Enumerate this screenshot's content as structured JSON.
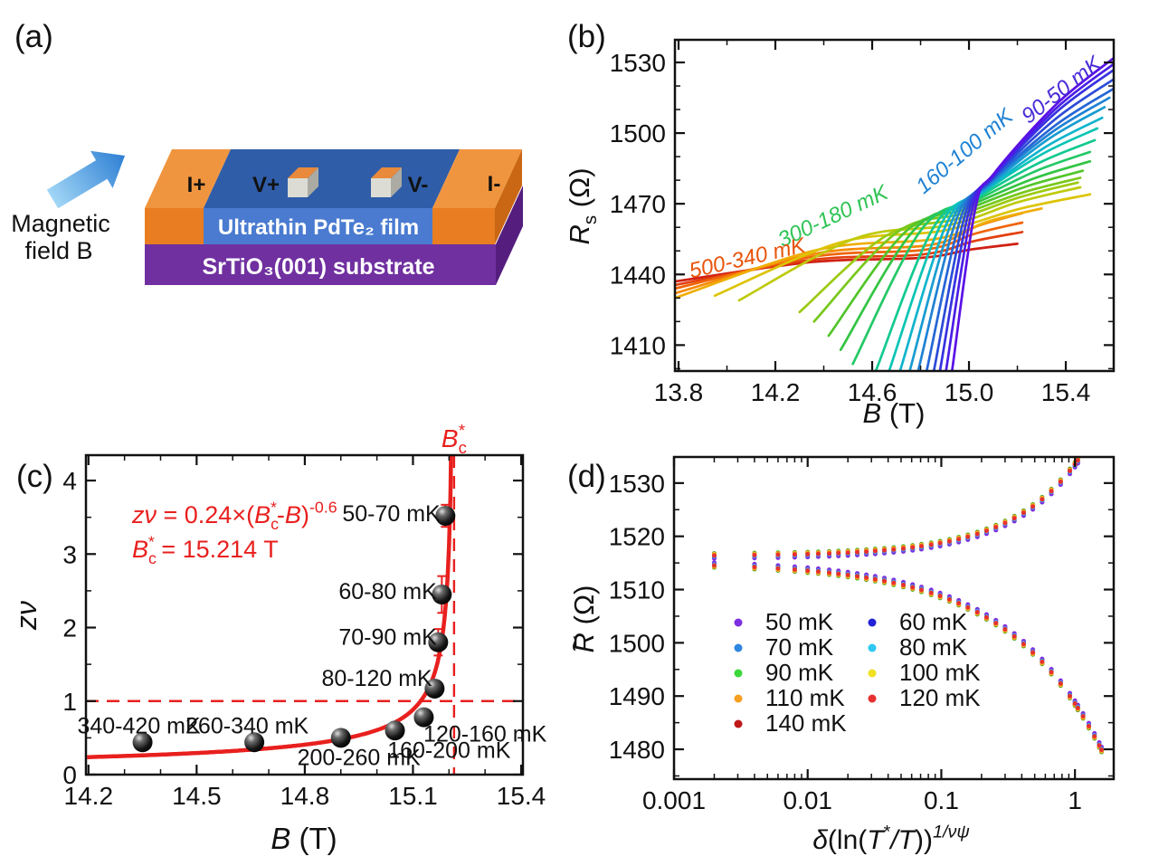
{
  "panels": {
    "a": {
      "label": "(a)",
      "magnetic_line1": "Magnetic",
      "magnetic_line2": "field B",
      "i_plus": "I+",
      "v_plus": "V+",
      "v_minus": "V-",
      "i_minus": "I-",
      "film": "Ultrathin PdTe₂ film",
      "substrate": "SrTiO₃(001) substrate",
      "colors": {
        "orange_top": "#F0953F",
        "orange_front": "#E87D22",
        "orange_side": "#C96715",
        "film_top": "#2F5DA8",
        "film_front": "#4A7BD0",
        "substrate_front": "#7030A0",
        "substrate_side": "#551E7E",
        "pad_front": "#DCDCD4",
        "pad_side": "#ABABA3",
        "pad_top": "#E8893C",
        "arrow_light": "#A9DCF8",
        "arrow_dark": "#2E7FD4"
      }
    },
    "b": {
      "label": "(b)"
    },
    "c": {
      "label": "(c)"
    },
    "d": {
      "label": "(d)"
    }
  },
  "chart_data": [
    {
      "panel": "b",
      "type": "line",
      "xlabel_rich": [
        {
          "t": "B",
          "i": 1
        },
        {
          "t": " (T)"
        }
      ],
      "ylabel_rich": [
        {
          "t": "R",
          "i": 1
        },
        {
          "t": "s",
          "sub": 1
        },
        {
          "t": " (Ω)"
        }
      ],
      "xlim": [
        13.785,
        15.598
      ],
      "ylim": [
        1399,
        1539.6
      ],
      "xticks": [
        13.8,
        14.2,
        14.6,
        15.0,
        15.4
      ],
      "xminor_step": 0.2,
      "yticks": [
        1410,
        1440,
        1470,
        1500,
        1530
      ],
      "yminor_step": 10,
      "series": [
        {
          "label": "500 mK",
          "color": "#D02014",
          "pts": [
            [
              13.785,
              1437
            ],
            [
              14.8,
              1447
            ],
            [
              15.2,
              1453
            ]
          ]
        },
        {
          "label": "460 mK",
          "color": "#E2400E",
          "pts": [
            [
              13.785,
              1435.5
            ],
            [
              14.81,
              1448.5
            ],
            [
              15.22,
              1458
            ]
          ]
        },
        {
          "label": "420 mK",
          "color": "#F0650A",
          "pts": [
            [
              13.785,
              1434
            ],
            [
              14.82,
              1450.5
            ],
            [
              15.22,
              1462
            ]
          ]
        },
        {
          "label": "380 mK",
          "color": "#F58A06",
          "pts": [
            [
              13.785,
              1432
            ],
            [
              14.84,
              1452.5
            ],
            [
              15.22,
              1466
            ]
          ]
        },
        {
          "label": "340 mK",
          "color": "#EFAD04",
          "pts": [
            [
              13.785,
              1430
            ],
            [
              14.86,
              1455
            ],
            [
              15.3,
              1468
            ]
          ]
        },
        {
          "label": "300 mK",
          "color": "#DCC406",
          "pts": [
            [
              13.95,
              1431
            ],
            [
              14.89,
              1458.5
            ],
            [
              15.5,
              1474
            ]
          ]
        },
        {
          "label": "280 mK",
          "color": "#BFCA0C",
          "pts": [
            [
              14.05,
              1429
            ],
            [
              14.92,
              1461
            ],
            [
              15.46,
              1477
            ]
          ]
        },
        {
          "label": "260 mK",
          "color": "#9CCA12",
          "pts": [
            [
              14.3,
              1424
            ],
            [
              14.95,
              1463.5
            ],
            [
              15.45,
              1479
            ]
          ]
        },
        {
          "label": "240 mK",
          "color": "#78C81C",
          "pts": [
            [
              14.36,
              1420
            ],
            [
              14.98,
              1466
            ],
            [
              15.46,
              1481
            ]
          ]
        },
        {
          "label": "220 mK",
          "color": "#52C52B",
          "pts": [
            [
              14.42,
              1414
            ],
            [
              15.0,
              1468
            ],
            [
              15.47,
              1484
            ]
          ]
        },
        {
          "label": "200 mK",
          "color": "#33C443",
          "pts": [
            [
              14.47,
              1408
            ],
            [
              15.02,
              1470
            ],
            [
              15.5,
              1488
            ]
          ]
        },
        {
          "label": "180 mK",
          "color": "#24C866",
          "pts": [
            [
              14.52,
              1402
            ],
            [
              15.04,
              1472
            ],
            [
              15.5,
              1492
            ]
          ]
        },
        {
          "label": "160 mK",
          "color": "#12C990",
          "pts": [
            [
              14.615,
              1399
            ],
            [
              15.05,
              1473.5
            ],
            [
              15.52,
              1497
            ]
          ]
        },
        {
          "label": "140 mK",
          "color": "#0AC4B4",
          "pts": [
            [
              14.67,
              1399
            ],
            [
              15.06,
              1475
            ],
            [
              15.53,
              1502
            ]
          ]
        },
        {
          "label": "120 mK",
          "color": "#10B4CC",
          "pts": [
            [
              14.715,
              1399
            ],
            [
              15.07,
              1476
            ],
            [
              15.55,
              1506.5
            ]
          ]
        },
        {
          "label": "110 mK",
          "color": "#189CD2",
          "pts": [
            [
              14.755,
              1399
            ],
            [
              15.075,
              1477
            ],
            [
              15.56,
              1511
            ]
          ]
        },
        {
          "label": "100 mK",
          "color": "#1F82D4",
          "pts": [
            [
              14.79,
              1399
            ],
            [
              15.08,
              1478
            ],
            [
              15.58,
              1515
            ]
          ]
        },
        {
          "label": "90 mK",
          "color": "#2566D6",
          "pts": [
            [
              14.825,
              1399
            ],
            [
              15.085,
              1479
            ],
            [
              15.6,
              1519
            ]
          ]
        },
        {
          "label": "80 mK",
          "color": "#2B4BD8",
          "pts": [
            [
              14.855,
              1399
            ],
            [
              15.09,
              1480
            ],
            [
              15.6,
              1523
            ]
          ]
        },
        {
          "label": "70 mK",
          "color": "#3732E0",
          "pts": [
            [
              14.88,
              1399
            ],
            [
              15.095,
              1481
            ],
            [
              15.6,
              1527
            ]
          ]
        },
        {
          "label": "60 mK",
          "color": "#4A1EE6",
          "pts": [
            [
              14.905,
              1399
            ],
            [
              15.1,
              1482
            ],
            [
              15.6,
              1529.5
            ]
          ]
        },
        {
          "label": "50 mK",
          "color": "#5A10E6",
          "pts": [
            [
              14.93,
              1399
            ],
            [
              15.105,
              1483
            ],
            [
              15.6,
              1532
            ]
          ]
        }
      ],
      "annotations": [
        {
          "text": "90-50 mK",
          "color": "#4A2BD8",
          "x": 15.4,
          "y": 1516,
          "angle": -38
        },
        {
          "text": "160-100 mK",
          "color": "#1F82D4",
          "x": 15.0,
          "y": 1490,
          "angle": -40
        },
        {
          "text": "300-180 mK",
          "color": "#2FC455",
          "x": 14.45,
          "y": 1462,
          "angle": -25
        },
        {
          "text": "500-340 mK",
          "color": "#E8540C",
          "x": 14.09,
          "y": 1444,
          "angle": -13
        }
      ]
    },
    {
      "panel": "c",
      "type": "scatter",
      "xlabel_rich": [
        {
          "t": "B",
          "i": 1
        },
        {
          "t": " (T)"
        }
      ],
      "ylabel_rich": [
        {
          "t": "zν",
          "i": 1
        }
      ],
      "xlim": [
        14.193,
        15.405
      ],
      "ylim": [
        0,
        4.345
      ],
      "xticks": [
        14.2,
        14.5,
        14.8,
        15.1,
        15.4
      ],
      "xminor_step": 0.1,
      "yticks": [
        0,
        1,
        2,
        3,
        4
      ],
      "yminor_step": 0.5,
      "accent": "#E8201E",
      "fit": {
        "A": 0.24,
        "Bc": 15.214,
        "p": 0.6
      },
      "hline": 1,
      "vline": 15.214,
      "bc_label_rich": [
        {
          "t": "B",
          "i": 1
        },
        {
          "t": "c",
          "sub": 1
        },
        {
          "t": "*",
          "sup": 1,
          "dx": -9
        }
      ],
      "eq1_rich": [
        {
          "t": "z",
          "i": 1
        },
        {
          "t": "ν",
          "i": 1
        },
        {
          "t": " = 0.24×("
        },
        {
          "t": "B",
          "i": 1
        },
        {
          "t": "c",
          "sub": 1
        },
        {
          "t": "*",
          "sup": 1,
          "dx": -9
        },
        {
          "t": "-"
        },
        {
          "t": "B",
          "i": 1
        },
        {
          "t": ")"
        },
        {
          "t": "-0.6",
          "sup": 1
        }
      ],
      "eq2_rich": [
        {
          "t": "B",
          "i": 1
        },
        {
          "t": "c",
          "sub": 1
        },
        {
          "t": "*",
          "sup": 1,
          "dx": -9
        },
        {
          "t": " = 15.214 T"
        }
      ],
      "points": [
        {
          "x": 14.35,
          "y": 0.44,
          "err": 0,
          "label": "340-420 mK",
          "lx": 14.34,
          "ly": 0.67
        },
        {
          "x": 14.66,
          "y": 0.44,
          "err": 0,
          "label": "260-340 mK",
          "lx": 14.64,
          "ly": 0.67
        },
        {
          "x": 14.9,
          "y": 0.5,
          "err": 0,
          "label": "200-260 mK",
          "lx": 14.95,
          "ly": 0.24
        },
        {
          "x": 15.05,
          "y": 0.6,
          "err": 0,
          "label": "160-200 mK",
          "lx": 15.2,
          "ly": 0.34
        },
        {
          "x": 15.13,
          "y": 0.78,
          "err": 0,
          "label": "120-160 mK",
          "lx": 15.3,
          "ly": 0.56
        },
        {
          "x": 15.16,
          "y": 1.17,
          "err": 0.1,
          "label": "80-120 mK",
          "lx": 15.0,
          "ly": 1.32
        },
        {
          "x": 15.17,
          "y": 1.8,
          "err": 0.18,
          "label": "70-90 mK",
          "lx": 15.03,
          "ly": 1.88
        },
        {
          "x": 15.18,
          "y": 2.45,
          "err": 0.25,
          "label": "60-80 mK",
          "lx": 15.03,
          "ly": 2.5
        },
        {
          "x": 15.19,
          "y": 3.52,
          "err": 0.15,
          "label": "50-70 mK",
          "lx": 15.04,
          "ly": 3.56
        }
      ]
    },
    {
      "panel": "d",
      "type": "scatter",
      "xscale": "log",
      "xlabel_rich": [
        {
          "t": "δ",
          "i": 1
        },
        {
          "t": "(ln("
        },
        {
          "t": "T",
          "i": 1
        },
        {
          "t": "*",
          "sup": 1
        },
        {
          "t": "/",
          "i": 1
        },
        {
          "t": "T",
          "i": 1
        },
        {
          "t": "))"
        },
        {
          "t": "1/νψ",
          "sup": 1,
          "i": 1
        }
      ],
      "ylabel_rich": [
        {
          "t": "R",
          "i": 1
        },
        {
          "t": "~",
          "tilde": 1,
          "dx": -21
        },
        {
          "t": " (Ω)",
          "dx": 3
        }
      ],
      "xlim": [
        0.001,
        1.95
      ],
      "ylim": [
        1474.4,
        1534.9
      ],
      "xticks": [
        0.001,
        0.01,
        0.1,
        1
      ],
      "yticks": [
        1480,
        1490,
        1500,
        1510,
        1520,
        1530
      ],
      "yminor_step": 5,
      "branches": {
        "upper": {
          "base": 1516.2,
          "amp": 17.2,
          "pow": 0.85,
          "xmax": 1.05
        },
        "lower": {
          "base": 1515.2,
          "amp": 26.5,
          "pow": 0.62,
          "xmax": 1.58
        }
      },
      "x_upper": [
        0.002,
        0.004,
        0.006,
        0.008,
        0.01,
        0.012,
        0.0145,
        0.017,
        0.02,
        0.0235,
        0.0275,
        0.032,
        0.0375,
        0.044,
        0.052,
        0.061,
        0.071,
        0.084,
        0.098,
        0.115,
        0.135,
        0.158,
        0.186,
        0.218,
        0.256,
        0.3,
        0.352,
        0.413,
        0.484,
        0.568,
        0.666,
        0.781,
        0.916,
        1.0,
        1.05
      ],
      "x_lower_extra": [
        1.15,
        1.27,
        1.4,
        1.52,
        1.58
      ],
      "series": [
        {
          "label": "90 mK",
          "color": "#3BD83B",
          "off": 0.65
        },
        {
          "label": "140 mK",
          "color": "#C01818",
          "off": 0.5
        },
        {
          "label": "100 mK",
          "color": "#F0E020",
          "off": 0.42
        },
        {
          "label": "110 mK",
          "color": "#F5A020",
          "off": 0.28
        },
        {
          "label": "60 mK",
          "color": "#2222D8",
          "off": -0.35
        },
        {
          "label": "70 mK",
          "color": "#2E86E0",
          "off": -0.18
        },
        {
          "label": "50 mK",
          "color": "#7B2FE0",
          "off": -0.55
        },
        {
          "label": "80 mK",
          "color": "#30C8F0",
          "off": -0.05
        },
        {
          "label": "120 mK",
          "color": "#E83030",
          "off": 0.12
        }
      ],
      "legend": {
        "col1": [
          {
            "label": "50 mK",
            "color": "#7B2FE0"
          },
          {
            "label": "70 mK",
            "color": "#2E86E0"
          },
          {
            "label": "90 mK",
            "color": "#3BD83B"
          },
          {
            "label": "110 mK",
            "color": "#F5A020"
          },
          {
            "label": "140 mK",
            "color": "#C01818"
          }
        ],
        "col2": [
          {
            "label": "60 mK",
            "color": "#2222D8"
          },
          {
            "label": "80 mK",
            "color": "#30C8F0"
          },
          {
            "label": "100 mK",
            "color": "#F0E020"
          },
          {
            "label": "120 mK",
            "color": "#E83030"
          }
        ]
      }
    }
  ]
}
